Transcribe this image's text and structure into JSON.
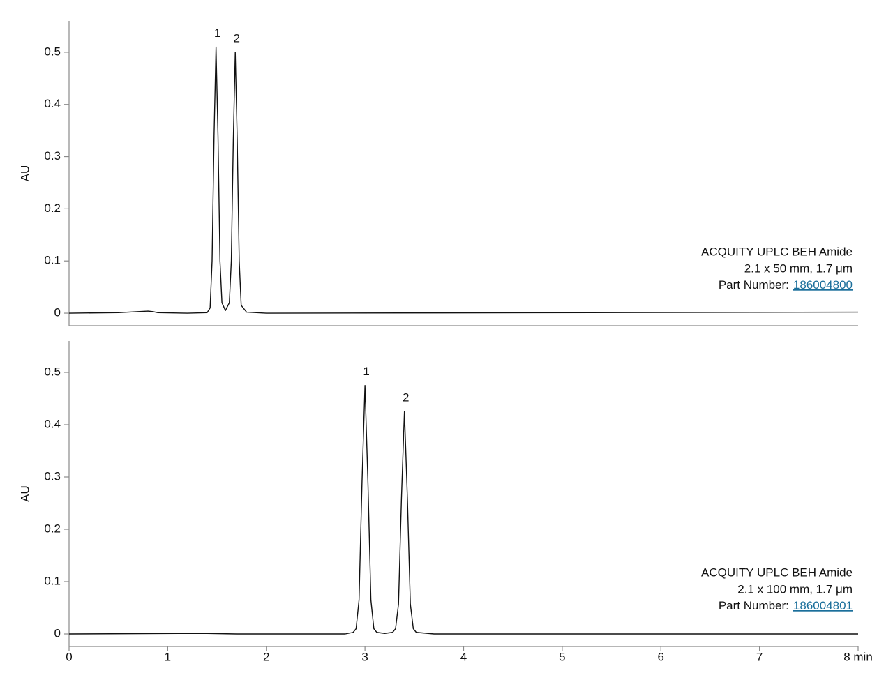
{
  "chart_data": [
    {
      "type": "line",
      "ylabel": "AU",
      "x": [
        0,
        0.5,
        0.8,
        0.85,
        0.9,
        1.2,
        1.4,
        1.43,
        1.45,
        1.47,
        1.49,
        1.51,
        1.53,
        1.55,
        1.585,
        1.625,
        1.645,
        1.665,
        1.685,
        1.705,
        1.725,
        1.745,
        1.8,
        2.0,
        5.3,
        8.0
      ],
      "values": [
        0,
        0.001,
        0.004,
        0.003,
        0.001,
        0,
        0.001,
        0.01,
        0.1,
        0.34,
        0.51,
        0.34,
        0.1,
        0.02,
        0.005,
        0.02,
        0.1,
        0.33,
        0.5,
        0.33,
        0.1,
        0.015,
        0.002,
        0,
        0.001,
        0.002
      ],
      "color": "#111111",
      "xlim": [
        0,
        8
      ],
      "ylim": [
        -0.024,
        0.56
      ],
      "yticks": [
        0,
        0.1,
        0.2,
        0.3,
        0.4,
        0.5
      ],
      "peak_labels": [
        "1",
        "2"
      ],
      "column_name": "ACQUITY UPLC BEH Amide",
      "column_dims": "2.1 x 50 mm, 1.7 μm",
      "part_label": "Part Number:",
      "part_number": "186004800"
    },
    {
      "type": "line",
      "ylabel": "AU",
      "x": [
        0,
        1.2,
        1.4,
        1.7,
        2.8,
        2.88,
        2.91,
        2.94,
        2.97,
        3.0,
        3.03,
        3.06,
        3.09,
        3.12,
        3.2,
        3.28,
        3.31,
        3.34,
        3.37,
        3.4,
        3.43,
        3.46,
        3.49,
        3.52,
        3.7,
        8.0
      ],
      "values": [
        0,
        0.001,
        0.001,
        0,
        0,
        0.003,
        0.01,
        0.065,
        0.29,
        0.475,
        0.29,
        0.065,
        0.01,
        0.003,
        0.001,
        0.003,
        0.01,
        0.057,
        0.26,
        0.425,
        0.26,
        0.057,
        0.01,
        0.003,
        0,
        0
      ],
      "color": "#111111",
      "xlim": [
        0,
        8
      ],
      "ylim": [
        -0.024,
        0.56
      ],
      "yticks": [
        0,
        0.1,
        0.2,
        0.3,
        0.4,
        0.5
      ],
      "xticks": [
        0,
        1,
        2,
        3,
        4,
        5,
        6,
        7,
        {
          "value": 8,
          "label": "8 min"
        }
      ],
      "peak_labels": [
        "1",
        "2"
      ],
      "column_name": "ACQUITY UPLC BEH Amide",
      "column_dims": "2.1 x 100 mm, 1.7 μm",
      "part_label": "Part Number:",
      "part_number": "186004801"
    }
  ]
}
